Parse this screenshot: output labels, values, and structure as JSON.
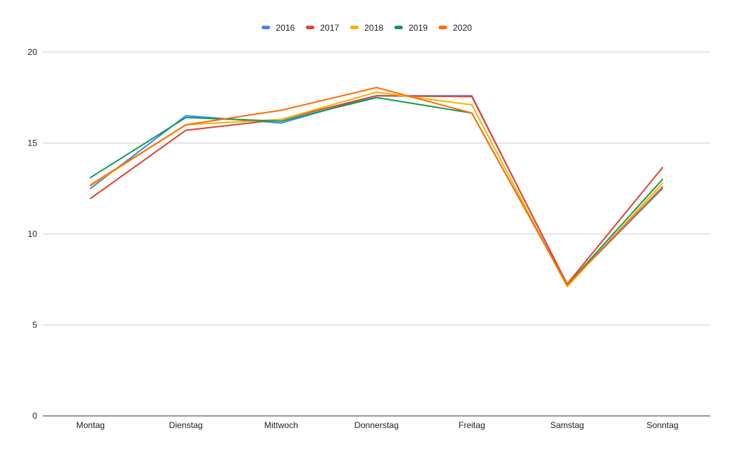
{
  "chart_data": {
    "type": "line",
    "title": "",
    "xlabel": "",
    "ylabel": "",
    "categories": [
      "Montag",
      "Dienstag",
      "Mittwoch",
      "Donnerstag",
      "Freitag",
      "Samstag",
      "Sonntag"
    ],
    "ylim": [
      0,
      20
    ],
    "yticks": [
      0,
      5,
      10,
      15,
      20
    ],
    "grid": true,
    "legend_position": "top",
    "series": [
      {
        "name": "2016",
        "color": "#4285f4",
        "values": [
          12.5,
          16.5,
          16.1,
          17.6,
          17.6,
          7.2,
          12.5
        ]
      },
      {
        "name": "2017",
        "color": "#db4437",
        "values": [
          11.95,
          15.7,
          16.3,
          17.6,
          17.55,
          7.25,
          13.65
        ]
      },
      {
        "name": "2018",
        "color": "#f4b400",
        "values": [
          12.65,
          16.0,
          16.3,
          17.8,
          17.1,
          7.1,
          12.8
        ]
      },
      {
        "name": "2019",
        "color": "#0f9d58",
        "values": [
          13.1,
          16.4,
          16.2,
          17.5,
          16.65,
          7.2,
          13.0
        ]
      },
      {
        "name": "2020",
        "color": "#ff6d00",
        "values": [
          12.7,
          16.0,
          16.8,
          18.05,
          16.65,
          7.2,
          12.6
        ]
      }
    ]
  }
}
